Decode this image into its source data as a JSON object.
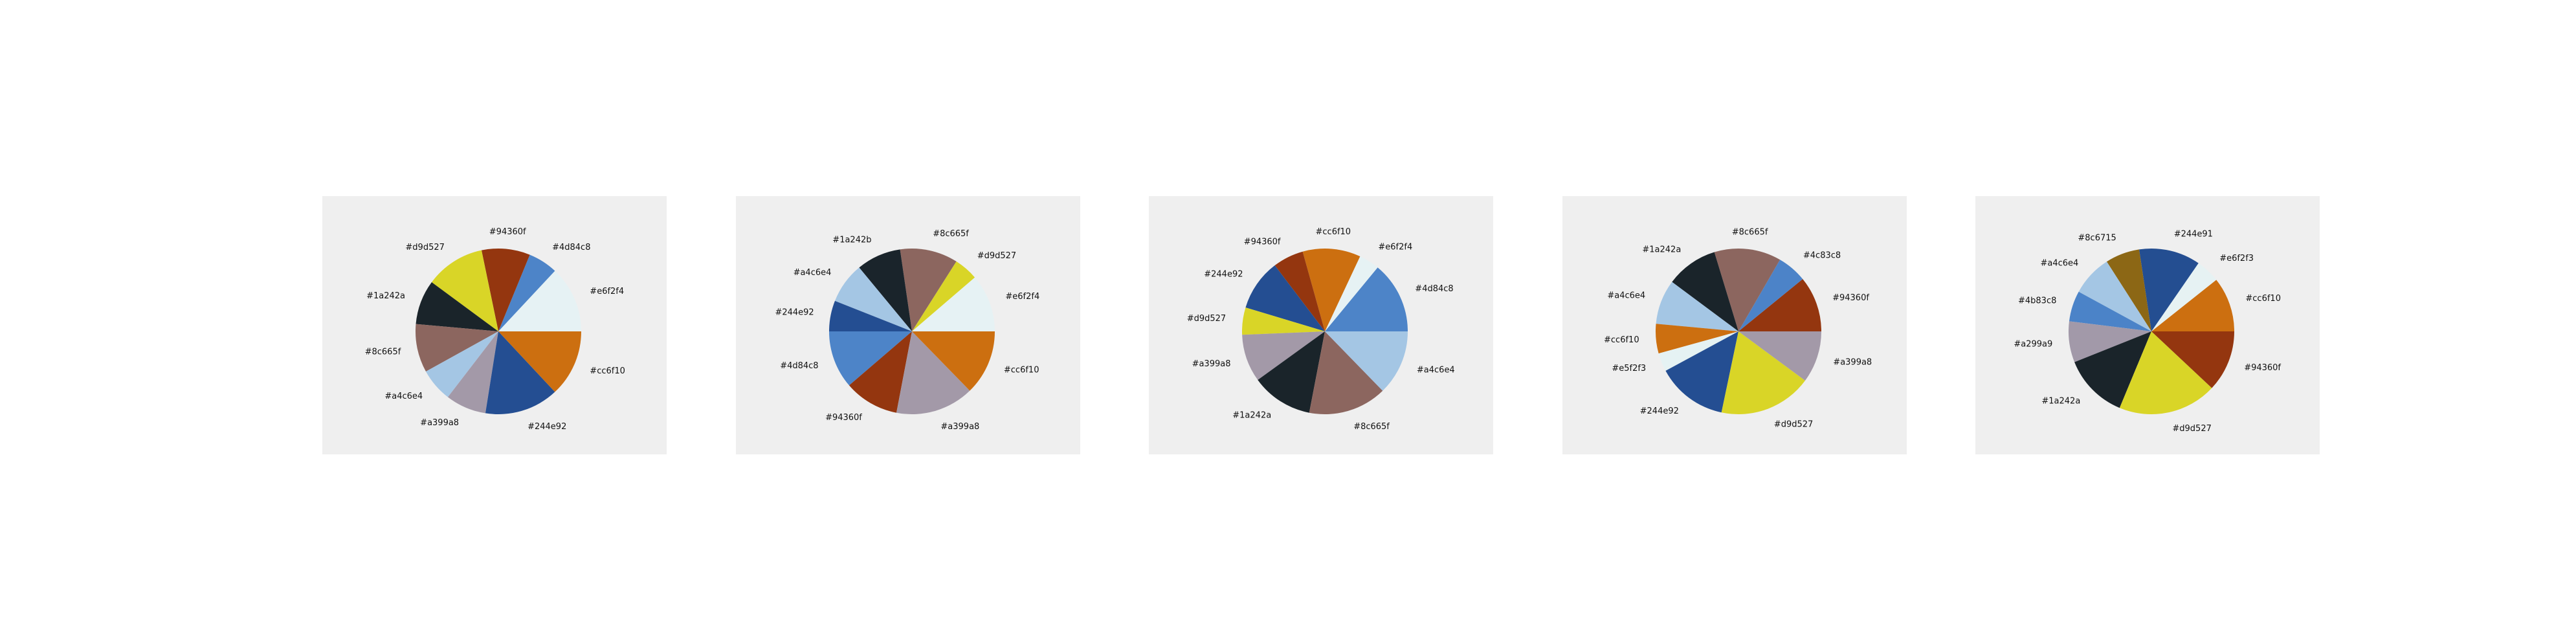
{
  "chart_data": [
    {
      "type": "pie",
      "start_angle": 0,
      "counterclockwise": true,
      "labels": [
        "#e6f2f4",
        "#4d84c8",
        "#94360f",
        "#d9d527",
        "#1a242a",
        "#8c665f",
        "#a4c6e4",
        "#a399a8",
        "#244e92",
        "#cc6f10"
      ],
      "values": [
        0.12,
        0.053,
        0.087,
        0.107,
        0.08,
        0.087,
        0.06,
        0.073,
        0.133,
        0.12
      ],
      "colors": [
        "#e6f2f4",
        "#4d84c8",
        "#94360f",
        "#d9d527",
        "#1a242a",
        "#8c665f",
        "#a4c6e4",
        "#a399a8",
        "#244e92",
        "#cc6f10"
      ],
      "label_order": [
        "#94360f",
        "#4d84c8",
        "#d9d527",
        "#1a242a",
        "#8c665f",
        "#a4c6e4",
        "#a399a8",
        "#244e92",
        "#cc6f10",
        "#e6f2f4"
      ]
    },
    {
      "type": "pie",
      "start_angle": 0,
      "counterclockwise": true,
      "labels": [
        "#e6f2f4",
        "#d9d527",
        "#8c665f",
        "#1a242b",
        "#a4c6e4",
        "#244e92",
        "#4d84c8",
        "#94360f",
        "#a399a8",
        "#cc6f10"
      ],
      "values": [
        0.113,
        0.047,
        0.113,
        0.087,
        0.08,
        0.06,
        0.113,
        0.107,
        0.153,
        0.127
      ],
      "colors": [
        "#e6f2f4",
        "#d9d527",
        "#8c665f",
        "#1a242b",
        "#a4c6e4",
        "#244e92",
        "#4d84c8",
        "#94360f",
        "#a399a8",
        "#cc6f10"
      ],
      "label_order": [
        "#e6f2f4",
        "#d9d527",
        "#8c665f",
        "#1a242b",
        "#a4c6e4",
        "#244e92",
        "#4d84c8",
        "#94360f",
        "#a399a8",
        "#cc6f10"
      ]
    },
    {
      "type": "pie",
      "start_angle": 0,
      "counterclockwise": true,
      "labels": [
        "#4d84c8",
        "#e6f2f4",
        "#cc6f10",
        "#94360f",
        "#244e92",
        "#d9d527",
        "#a399a8",
        "#1a242a",
        "#8c665f",
        "#a4c6e4"
      ],
      "values": [
        0.14,
        0.04,
        0.113,
        0.06,
        0.1,
        0.053,
        0.093,
        0.12,
        0.153,
        0.127
      ],
      "colors": [
        "#4d84c8",
        "#e6f2f4",
        "#cc6f10",
        "#94360f",
        "#244e92",
        "#d9d527",
        "#a399a8",
        "#1a242a",
        "#8c665f",
        "#a4c6e4"
      ],
      "label_order": [
        "#e6f2f4",
        "#4d84c8",
        "#cc6f10",
        "#94360f",
        "#244e92",
        "#d9d527",
        "#a399a8",
        "#1a242a",
        "#8c665f",
        "#a4c6e4"
      ]
    },
    {
      "type": "pie",
      "start_angle": 0,
      "counterclockwise": true,
      "labels": [
        "#94360f",
        "#4c83c8",
        "#8c665f",
        "#1a242a",
        "#a4c6e4",
        "#cc6f10",
        "#e5f2f3",
        "#244e92",
        "#d9d527",
        "#a399a8"
      ],
      "values": [
        0.1,
        0.053,
        0.12,
        0.093,
        0.08,
        0.053,
        0.033,
        0.127,
        0.167,
        0.093
      ],
      "colors": [
        "#94360f",
        "#4c83c8",
        "#8c665f",
        "#1a242a",
        "#a4c6e4",
        "#cc6f10",
        "#e5f2f3",
        "#244e92",
        "#d9d527",
        "#a399a8"
      ],
      "label_order": [
        "#8c665f",
        "#4c83c8",
        "#94360f",
        "#1a242a",
        "#a4c6e4",
        "#cc6f10",
        "#e5f2f3",
        "#244e92",
        "#d9d527",
        "#a399a8"
      ]
    },
    {
      "type": "pie",
      "start_angle": 0,
      "counterclockwise": true,
      "labels": [
        "#cc6f10",
        "#e6f2f3",
        "#244e91",
        "#8c6715",
        "#a4c6e4",
        "#4b83c8",
        "#a299a9",
        "#1a242a",
        "#d9d527",
        "#94360f"
      ],
      "values": [
        0.107,
        0.047,
        0.12,
        0.067,
        0.08,
        0.06,
        0.08,
        0.127,
        0.193,
        0.12
      ],
      "colors": [
        "#cc6f10",
        "#e6f2f3",
        "#244e91",
        "#8c6715",
        "#a4c6e4",
        "#4b83c8",
        "#a299a9",
        "#1a242a",
        "#d9d527",
        "#94360f"
      ],
      "label_order": [
        "#244e91",
        "#e6f2f3",
        "#cc6f10",
        "#8c6715",
        "#a4c6e4",
        "#4b83c8",
        "#a299a9",
        "#1a242a",
        "#d9d527",
        "#94360f"
      ]
    }
  ]
}
